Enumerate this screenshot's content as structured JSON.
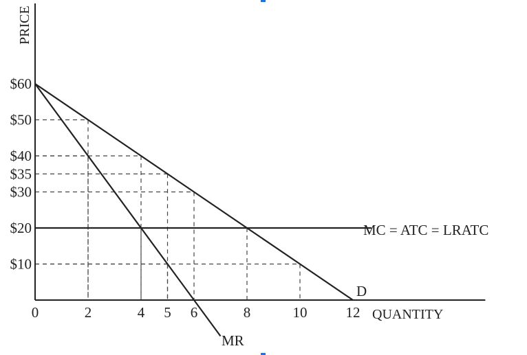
{
  "chart_data": {
    "type": "line",
    "ylabel": "PRICE",
    "xlabel": "QUANTITY",
    "xlim": [
      0,
      14.4
    ],
    "ylim": [
      -8,
      80
    ],
    "x_ticks": [
      {
        "value": 0,
        "label": "0"
      },
      {
        "value": 2,
        "label": "2"
      },
      {
        "value": 4,
        "label": "4"
      },
      {
        "value": 5,
        "label": "5"
      },
      {
        "value": 6,
        "label": "6"
      },
      {
        "value": 8,
        "label": "8"
      },
      {
        "value": 10,
        "label": "10"
      },
      {
        "value": 12,
        "label": "12"
      }
    ],
    "y_ticks": [
      {
        "value": 60,
        "label": "$60"
      },
      {
        "value": 50,
        "label": "$50"
      },
      {
        "value": 40,
        "label": "$40"
      },
      {
        "value": 35,
        "label": "$35"
      },
      {
        "value": 30,
        "label": "$30"
      },
      {
        "value": 20,
        "label": "$20"
      },
      {
        "value": 10,
        "label": "$10"
      }
    ],
    "series": [
      {
        "name": "D",
        "points": [
          [
            0,
            60
          ],
          [
            12,
            0
          ]
        ]
      },
      {
        "name": "MR",
        "points": [
          [
            0,
            60
          ],
          [
            7,
            -10
          ]
        ]
      },
      {
        "name": "MC = ATC = LRATC",
        "points": [
          [
            0,
            20
          ],
          [
            12.7,
            20
          ]
        ]
      }
    ],
    "guides": [
      {
        "x": 2,
        "y": 50
      },
      {
        "x": 2,
        "y": 40
      },
      {
        "x": 4,
        "y": 40
      },
      {
        "x": 4,
        "y": 20
      },
      {
        "x": 5,
        "y": 35
      },
      {
        "x": 5,
        "y": 10
      },
      {
        "x": 6,
        "y": 30
      },
      {
        "x": 6,
        "y": 0
      },
      {
        "x": 8,
        "y": 20
      },
      {
        "x": 10,
        "y": 10
      },
      {
        "x": 12,
        "y": 0
      }
    ],
    "grid": false,
    "line_color": "#222222"
  }
}
